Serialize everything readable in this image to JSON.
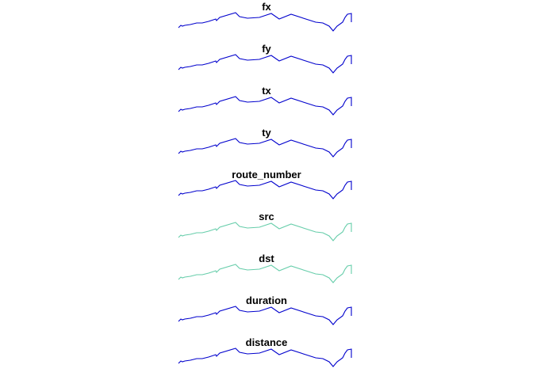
{
  "chart_data": {
    "type": "line",
    "layout": "small-multiples, single column",
    "axes_shown": false,
    "grid": false,
    "colors": {
      "default": "#0000CD",
      "highlight": "#66CDAA"
    },
    "x": [
      0,
      3,
      5,
      8,
      15,
      23,
      30,
      38,
      47,
      48,
      52,
      72,
      77,
      87,
      102,
      117,
      127,
      142,
      173,
      182,
      190,
      195,
      200,
      207,
      210,
      213,
      218,
      218
    ],
    "y": [
      4,
      7,
      6,
      7,
      8,
      10,
      10,
      12,
      15,
      13,
      17,
      23,
      18,
      16,
      17,
      22,
      15,
      21,
      11,
      10,
      6,
      0,
      6,
      11,
      17,
      21,
      22,
      11
    ],
    "panels": [
      {
        "title": "fx",
        "color": "#0000CD"
      },
      {
        "title": "fy",
        "color": "#0000CD"
      },
      {
        "title": "tx",
        "color": "#0000CD"
      },
      {
        "title": "ty",
        "color": "#0000CD"
      },
      {
        "title": "route_number",
        "color": "#0000CD"
      },
      {
        "title": "src",
        "color": "#66CDAA"
      },
      {
        "title": "dst",
        "color": "#66CDAA"
      },
      {
        "title": "duration",
        "color": "#0000CD"
      },
      {
        "title": "distance",
        "color": "#0000CD"
      }
    ]
  }
}
